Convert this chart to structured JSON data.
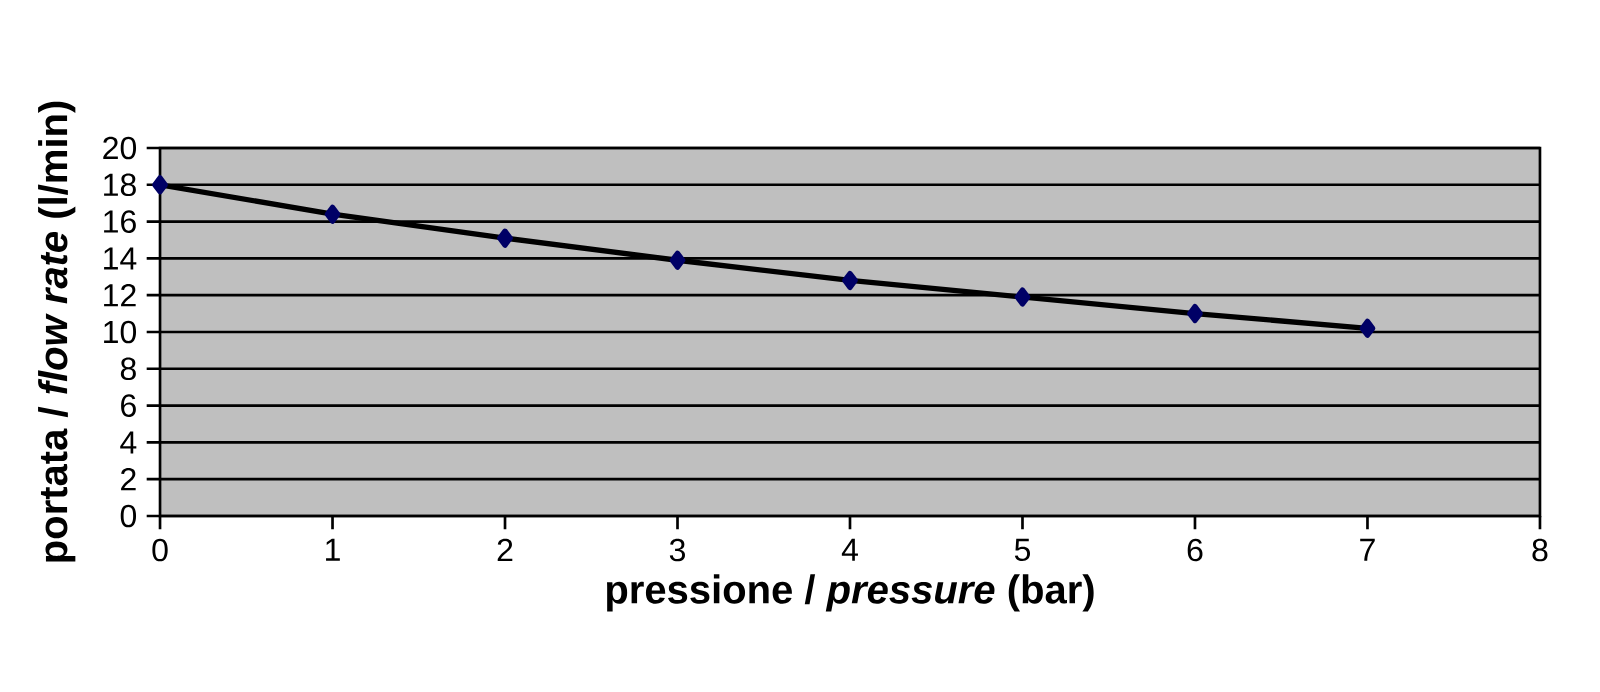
{
  "chart_data": {
    "type": "line",
    "xlabel": "pressione / *pressure* (bar)",
    "ylabel": "portata / *flow rate* (l/min)",
    "x": [
      0,
      1,
      2,
      3,
      4,
      5,
      6,
      7
    ],
    "series": [
      {
        "color": "#000000",
        "values": [
          18,
          16.4,
          15.1,
          13.9,
          12.8,
          11.9,
          11.0,
          10.2
        ]
      }
    ],
    "xlim": [
      0,
      8
    ],
    "xticks": [
      0,
      1,
      2,
      3,
      4,
      5,
      6,
      7,
      8
    ],
    "ylim": [
      0,
      20
    ],
    "yticks": [
      0,
      2,
      4,
      6,
      8,
      10,
      12,
      14,
      16,
      18,
      20
    ],
    "grid": "y",
    "marker": "diamond",
    "line_style": "solid"
  }
}
